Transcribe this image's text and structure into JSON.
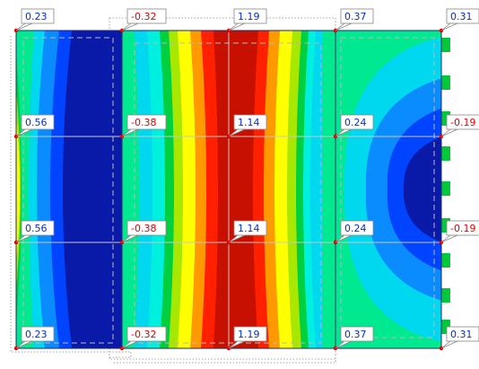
{
  "colors": {
    "dark_blue": "#0a1aa8",
    "blue": "#0044ff",
    "light_blue": "#0a8cff",
    "cyan": "#00d8f0",
    "light_cyan": "#00f0e0",
    "mint": "#00e890",
    "green": "#00d040",
    "yellow_green": "#a8e800",
    "yellow": "#ffff00",
    "orange": "#ff9900",
    "red": "#ff2000",
    "dark_red": "#c81000",
    "positive_text": "#0030d0",
    "negative_text": "#e00000",
    "node": "#e00000"
  },
  "labels": [
    {
      "id": "r1c1",
      "text": "0.23",
      "sign": "pos"
    },
    {
      "id": "r1c2",
      "text": "-0.32",
      "sign": "neg"
    },
    {
      "id": "r1c3",
      "text": "1.19",
      "sign": "pos"
    },
    {
      "id": "r1c4",
      "text": "0.37",
      "sign": "pos"
    },
    {
      "id": "r1c5",
      "text": "0.31",
      "sign": "pos"
    },
    {
      "id": "r2c1",
      "text": "0.56",
      "sign": "pos"
    },
    {
      "id": "r2c2",
      "text": "-0.38",
      "sign": "neg"
    },
    {
      "id": "r2c3",
      "text": "1.14",
      "sign": "pos"
    },
    {
      "id": "r2c4",
      "text": "0.24",
      "sign": "pos"
    },
    {
      "id": "r2c5",
      "text": "-0.19",
      "sign": "neg"
    },
    {
      "id": "r3c1",
      "text": "0.56",
      "sign": "pos"
    },
    {
      "id": "r3c2",
      "text": "-0.38",
      "sign": "neg"
    },
    {
      "id": "r3c3",
      "text": "1.14",
      "sign": "pos"
    },
    {
      "id": "r3c4",
      "text": "0.24",
      "sign": "pos"
    },
    {
      "id": "r3c5",
      "text": "-0.19",
      "sign": "neg"
    },
    {
      "id": "r4c1",
      "text": "0.23",
      "sign": "pos"
    },
    {
      "id": "r4c2",
      "text": "-0.32",
      "sign": "neg"
    },
    {
      "id": "r4c3",
      "text": "1.19",
      "sign": "pos"
    },
    {
      "id": "r4c4",
      "text": "0.37",
      "sign": "pos"
    },
    {
      "id": "r4c5",
      "text": "0.31",
      "sign": "pos"
    }
  ]
}
